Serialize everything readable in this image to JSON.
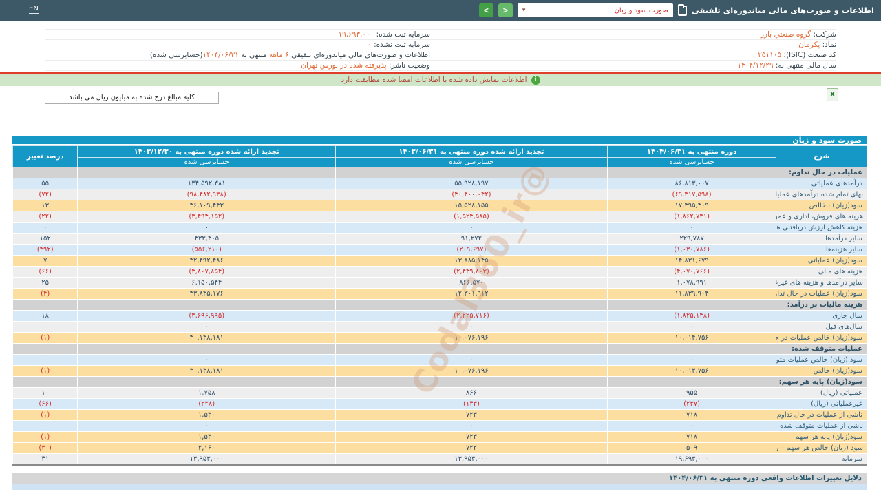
{
  "topbar": {
    "en_label": "EN",
    "title": "اطلاعات و صورت‌های مالی میاندوره‌ای تلفیقی",
    "dropdown_value": "صورت سود و زیان",
    "prev_label": "<",
    "next_label": ">"
  },
  "company_info": {
    "right": [
      [
        {
          "t": "شرکت: ",
          "c": "dark"
        },
        {
          "t": "گروه صنعتي بارز",
          "c": "orange"
        }
      ],
      [
        {
          "t": "نماد: ",
          "c": "dark"
        },
        {
          "t": "پکرمان",
          "c": "orange"
        }
      ],
      [
        {
          "t": "کد صنعت (ISIC): ",
          "c": "dark"
        },
        {
          "t": "۲۵۱۱۰۵",
          "c": "orange"
        }
      ],
      [
        {
          "t": "سال مالی منتهی به: ",
          "c": "dark"
        },
        {
          "t": "۱۴۰۴/۱۲/۲۹",
          "c": "orange"
        }
      ]
    ],
    "left": [
      [
        {
          "t": "سرمایه ثبت شده: ",
          "c": "dark"
        },
        {
          "t": "۱۹,۶۹۳,۰۰۰",
          "c": "orange"
        }
      ],
      [
        {
          "t": "سرمایه ثبت نشده: ",
          "c": "dark"
        },
        {
          "t": "۰",
          "c": "orange"
        }
      ],
      [
        {
          "t": "اطلاعات و صورت‌های مالی میاندوره‌ای تلفیقی ",
          "c": "dark"
        },
        {
          "t": "۶ ماهه",
          "c": "orange"
        },
        {
          "t": " منتهی به ",
          "c": "dark"
        },
        {
          "t": "۱۴۰۴/۰۶/۳۱",
          "c": "orange"
        },
        {
          "t": "(حسابرسی شده)",
          "c": "dark"
        }
      ],
      [
        {
          "t": "وضعیت ناشر: ",
          "c": "dark"
        },
        {
          "t": "پذيرفته شده در بورس تهران",
          "c": "orange"
        }
      ]
    ]
  },
  "banner": {
    "text": "اطلاعات نمایش داده شده با اطلاعات امضا شده مطابقت دارد",
    "icon": "i"
  },
  "note": "کلیه مبالغ درج شده به میلیون ریال می باشد",
  "excel_icon_label": "X",
  "watermark": "@Codal360_ir",
  "table": {
    "title": "صورت سود و زیان",
    "columns": {
      "desc": "شرح",
      "period1": "دوره منتهی به ۱۴۰۴/۰۶/۳۱",
      "period2": "تجدید ارائه شده دوره منتهی به ۱۴۰۳/۰۶/۳۱",
      "period3": "تجدید ارائه شده دوره منتهی به ۱۴۰۳/۱۲/۳۰",
      "pct": "درصد تغییر",
      "audited": "حسابرسی شده"
    },
    "rows": [
      {
        "type": "section",
        "label": "عملیات در حال تداوم:"
      },
      {
        "type": "data",
        "tone": "blue",
        "label": "درآمدهای عملیاتی",
        "v1": "۸۶,۸۱۳,۰۰۷",
        "v2": "۵۵,۹۲۸,۱۹۷",
        "v3": "۱۳۴,۵۹۲,۳۸۱",
        "pct": "۵۵"
      },
      {
        "type": "data",
        "tone": "gray",
        "label": "بهای تمام شده درآمدهای عملیاتی",
        "v1": "(۶۹,۳۱۷,۵۹۸)",
        "v2": "(۴۰,۴۰۰,۰۴۲)",
        "v3": "(۹۸,۴۸۲,۹۳۸)",
        "pct": "(۷۲)"
      },
      {
        "type": "data",
        "tone": "yellow",
        "label": "سود(زیان) ناخالص",
        "v1": "۱۷,۴۹۵,۴۰۹",
        "v2": "۱۵,۵۲۸,۱۵۵",
        "v3": "۳۶,۱۰۹,۴۴۳",
        "pct": "۱۳"
      },
      {
        "type": "data",
        "tone": "gray",
        "label": "هزینه های فروش، اداری و عمومی",
        "v1": "(۱,۸۶۲,۷۳۱)",
        "v2": "(۱,۵۲۴,۵۸۵)",
        "v3": "(۳,۴۹۴,۱۵۲)",
        "pct": "(۲۲)"
      },
      {
        "type": "data",
        "tone": "blue",
        "label": "هزینه کاهش ارزش دریافتنی ها (هزینه استثنایی)",
        "v1": "۰",
        "v2": "۰",
        "v3": "۰",
        "pct": "۰"
      },
      {
        "type": "data",
        "tone": "gray",
        "label": "سایر درآمدها",
        "v1": "۲۲۹,۷۸۷",
        "v2": "۹۱,۲۷۲",
        "v3": "۴۳۳,۴۰۵",
        "pct": "۱۵۲"
      },
      {
        "type": "data",
        "tone": "blue",
        "label": "سایر هزینه‌ها",
        "v1": "(۱,۰۳۰,۷۸۶)",
        "v2": "(۲۰۹,۶۹۷)",
        "v3": "(۵۵۶,۲۱۰)",
        "pct": "(۳۹۲)"
      },
      {
        "type": "data",
        "tone": "yellow",
        "label": "سود(زیان) عملیاتی",
        "v1": "۱۴,۸۳۱,۶۷۹",
        "v2": "۱۳,۸۸۵,۱۴۵",
        "v3": "۳۲,۴۹۲,۴۸۶",
        "pct": "۷"
      },
      {
        "type": "data",
        "tone": "gray",
        "label": "هزینه های مالی",
        "v1": "(۴,۰۷۰,۷۶۶)",
        "v2": "(۲,۴۴۹,۸۰۳)",
        "v3": "(۴,۸۰۷,۸۵۴)",
        "pct": "(۶۶)"
      },
      {
        "type": "data",
        "tone": "gray",
        "label": "سایر درآمدها و هزینه های غیرعملیاتی",
        "v1": "۱,۰۷۸,۹۹۱",
        "v2": "۸۶۶,۵۷۰",
        "v3": "۶,۱۵۰,۵۴۴",
        "pct": "۲۵"
      },
      {
        "type": "data",
        "tone": "yellow",
        "label": "سود(زیان) عملیات در حال تداوم قبل از مالیات",
        "v1": "۱۱,۸۳۹,۹۰۴",
        "v2": "۱۲,۳۰۱,۹۱۲",
        "v3": "۳۳,۸۳۵,۱۷۶",
        "pct": "(۴)"
      },
      {
        "type": "section",
        "label": "هزینه مالیات بر درآمد:"
      },
      {
        "type": "data",
        "tone": "blue",
        "label": "سال جاری",
        "v1": "(۱,۸۲۵,۱۴۸)",
        "v2": "(۲,۲۲۵,۷۱۶)",
        "v3": "(۳,۶۹۶,۹۹۵)",
        "pct": "۱۸"
      },
      {
        "type": "data",
        "tone": "gray",
        "label": "سال‌های قبل",
        "v1": "۰",
        "v2": "۰",
        "v3": "۰",
        "pct": "۰"
      },
      {
        "type": "data",
        "tone": "yellow",
        "label": "سود(زیان) خالص عملیات در حال تداوم",
        "v1": "۱۰,۰۱۴,۷۵۶",
        "v2": "۱۰,۰۷۶,۱۹۶",
        "v3": "۳۰,۱۳۸,۱۸۱",
        "pct": "(۱)"
      },
      {
        "type": "section",
        "label": "عملیات متوقف شده:"
      },
      {
        "type": "data",
        "tone": "blue",
        "label": "سود (زیان) خالص عملیات متوقف شده",
        "v1": "۰",
        "v2": "۰",
        "v3": "۰",
        "pct": "۰"
      },
      {
        "type": "data",
        "tone": "yellow",
        "label": "سود(زیان) خالص",
        "v1": "۱۰,۰۱۴,۷۵۶",
        "v2": "۱۰,۰۷۶,۱۹۶",
        "v3": "۳۰,۱۳۸,۱۸۱",
        "pct": "(۱)"
      },
      {
        "type": "section",
        "label": "سود(زیان) پایه هر سهم:"
      },
      {
        "type": "data",
        "tone": "gray",
        "label": "عملیاتی (ریال)",
        "v1": "۹۵۵",
        "v2": "۸۶۶",
        "v3": "۱,۷۵۸",
        "pct": "۱۰"
      },
      {
        "type": "data",
        "tone": "blue",
        "label": "غیرعملیاتی (ریال)",
        "v1": "(۲۳۷)",
        "v2": "(۱۴۳)",
        "v3": "(۲۲۸)",
        "pct": "(۶۶)"
      },
      {
        "type": "data",
        "tone": "yellow",
        "label": "ناشی از عملیات در حال تداوم",
        "v1": "۷۱۸",
        "v2": "۷۲۳",
        "v3": "۱,۵۳۰",
        "pct": "(۱)"
      },
      {
        "type": "data",
        "tone": "blue",
        "label": "ناشی از عملیات متوقف شده",
        "v1": "۰",
        "v2": "۰",
        "v3": "۰",
        "pct": "۰"
      },
      {
        "type": "data",
        "tone": "yellow",
        "label": "سود(زیان) پایه هر سهم",
        "v1": "۷۱۸",
        "v2": "۷۲۳",
        "v3": "۱,۵۳۰",
        "pct": "(۱)"
      },
      {
        "type": "data",
        "tone": "yellow",
        "label": "سود (زیان) خالص هر سهم – ریال",
        "v1": "۵۰۹",
        "v2": "۷۲۲",
        "v3": "۲,۱۶۰",
        "pct": "(۳۰)"
      },
      {
        "type": "data",
        "tone": "gray",
        "label": "سرمایه",
        "v1": "۱۹,۶۹۳,۰۰۰",
        "v2": "۱۳,۹۵۳,۰۰۰",
        "v3": "۱۳,۹۵۳,۰۰۰",
        "pct": "۴۱"
      }
    ]
  },
  "footer": {
    "label": "دلایل تغییرات اطلاعات واقعی دوره منتهی به ۱۴۰۴/۰۶/۳۱"
  },
  "colors": {
    "topbar_bg": "#3d5866",
    "table_header": "#1598c5",
    "row_blue": "#d7e9f7",
    "row_gray": "#eeeeee",
    "row_highlight": "#fcdfa0",
    "section_bg": "#d2d2d2",
    "negative": "#d32f2f",
    "value_text": "#32506c",
    "info_value_orange": "#e06a35",
    "banner_bg": "#cfe7c8",
    "banner_text": "#b14a3e",
    "banner_line": "#e03e2d"
  }
}
